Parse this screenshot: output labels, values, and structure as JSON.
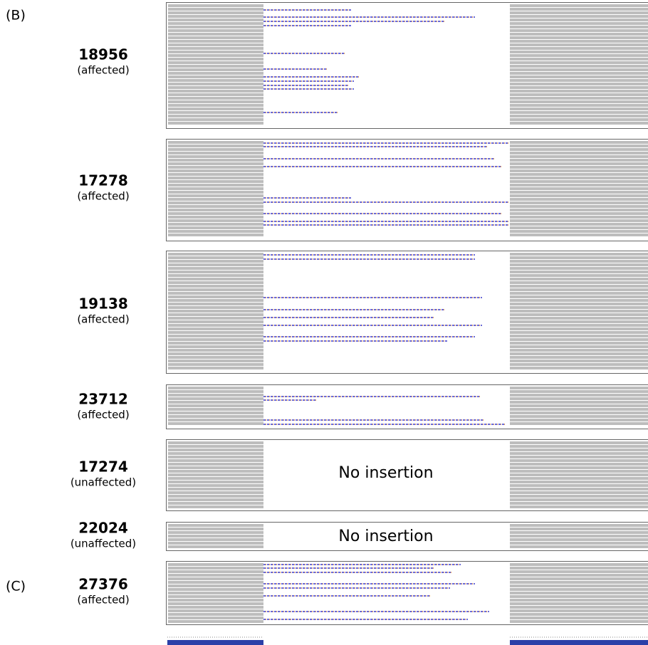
{
  "panel_labels": [
    "(B)",
    "(C)"
  ],
  "samples": [
    {
      "id": "18956",
      "status": "(affected)"
    },
    {
      "id": "17278",
      "status": "(affected)"
    },
    {
      "id": "19138",
      "status": "(affected)"
    },
    {
      "id": "23712",
      "status": "(affected)"
    },
    {
      "id": "17274",
      "status": "(unaffected)",
      "note": "No insertion"
    },
    {
      "id": "22024",
      "status": "(unaffected)",
      "note": "No insertion"
    },
    {
      "id": "27376",
      "status": "(affected)"
    }
  ]
}
